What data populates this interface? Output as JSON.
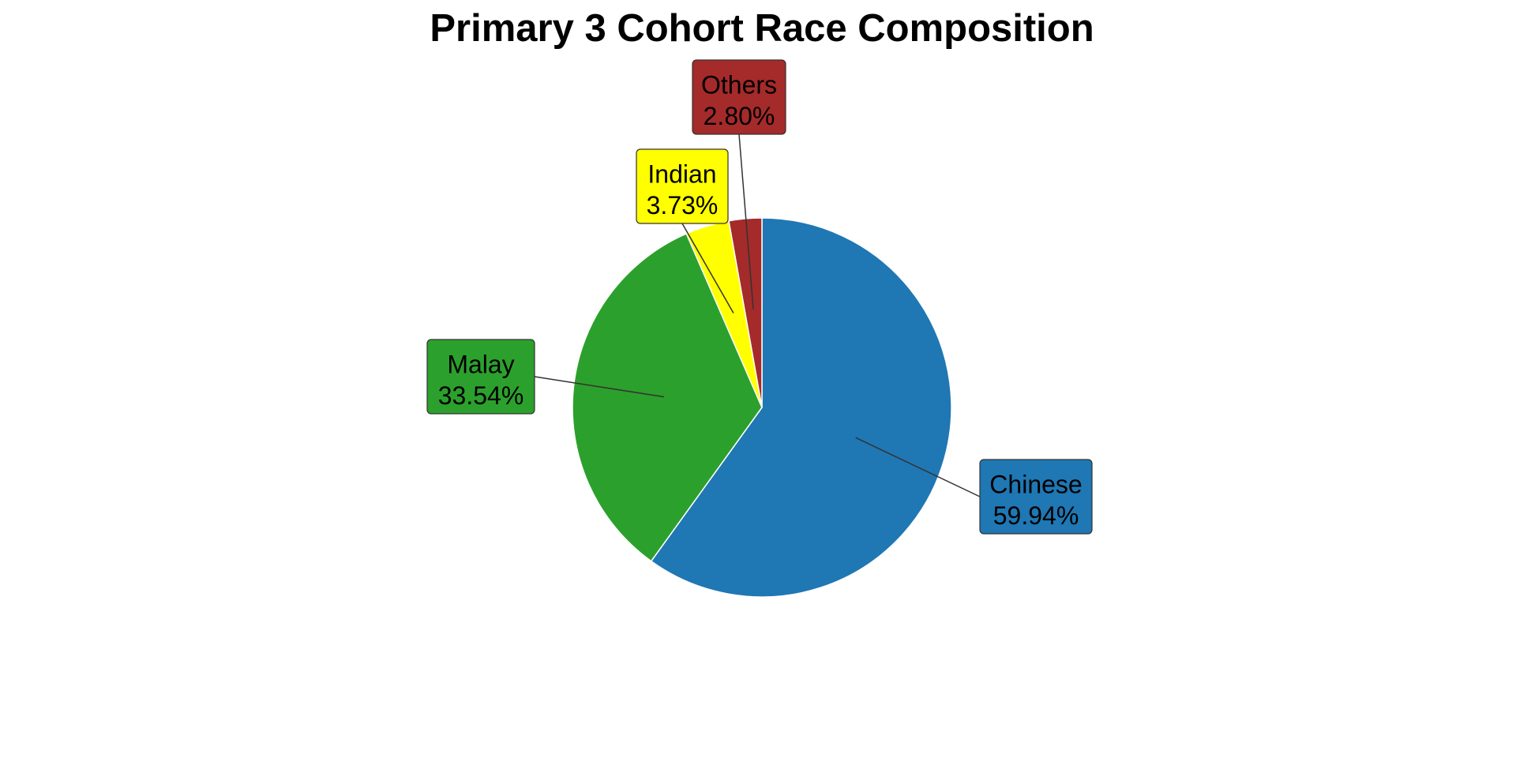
{
  "chart_data": {
    "type": "pie",
    "title": "Primary 3 Cohort Race Composition",
    "slices": [
      {
        "label": "Chinese",
        "value": 59.94,
        "value_label": "59.94%",
        "color": "#1f77b4"
      },
      {
        "label": "Malay",
        "value": 33.54,
        "value_label": "33.54%",
        "color": "#2ca02c"
      },
      {
        "label": "Indian",
        "value": 3.73,
        "value_label": "3.73%",
        "color": "#ffff00"
      },
      {
        "label": "Others",
        "value": 2.8,
        "value_label": "2.80%",
        "color": "#a52a2a"
      }
    ],
    "start_angle": "12 o'clock",
    "direction": "clockwise",
    "labels": "boxed callouts with leader lines",
    "legend": "none"
  }
}
